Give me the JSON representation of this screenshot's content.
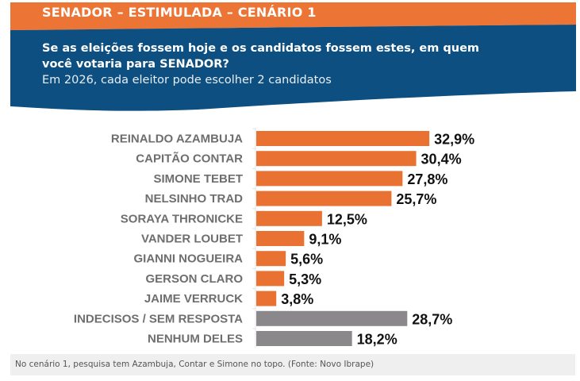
{
  "header": {
    "title": "SENADOR – ESTIMULADA – CENÁRIO 1",
    "question_line1": "Se as eleições fossem hoje e os candidatos fossem estes, em quem",
    "question_line2": "você votaria para SENADOR?",
    "subtitle": "Em 2026, cada eleitor pode escolher 2 candidatos"
  },
  "colors": {
    "header_orange": "#ec7434",
    "header_blue": "#0d4f80",
    "bar_candidate": "#e97232",
    "bar_other": "#8a888a",
    "axis": "#e3e3e3"
  },
  "chart_data": {
    "type": "bar",
    "orientation": "horizontal",
    "title": "SENADOR – ESTIMULADA – CENÁRIO 1",
    "xlabel": "",
    "ylabel": "",
    "xlim": [
      0,
      40
    ],
    "grid": false,
    "categories": [
      "REINALDO AZAMBUJA",
      "CAPITÃO CONTAR",
      "SIMONE TEBET",
      "NELSINHO TRAD",
      "SORAYA THRONICKE",
      "VANDER LOUBET",
      "GIANNI NOGUEIRA",
      "GERSON CLARO",
      "JAIME VERRUCK",
      "INDECISOS / SEM RESPOSTA",
      "NENHUM DELES"
    ],
    "values": [
      32.9,
      30.4,
      27.8,
      25.7,
      12.5,
      9.1,
      5.6,
      5.3,
      3.8,
      28.7,
      18.2
    ],
    "value_labels": [
      "32,9%",
      "30,4%",
      "27,8%",
      "25,7%",
      "12,5%",
      "9,1%",
      "5,6%",
      "5,3%",
      "3,8%",
      "28,7%",
      "18,2%"
    ],
    "group": [
      "candidate",
      "candidate",
      "candidate",
      "candidate",
      "candidate",
      "candidate",
      "candidate",
      "candidate",
      "candidate",
      "other",
      "other"
    ]
  },
  "footer": {
    "caption": "No cenário 1, pesquisa tem Azambuja, Contar e Simone no topo. (Fonte: Novo Ibrape)"
  }
}
